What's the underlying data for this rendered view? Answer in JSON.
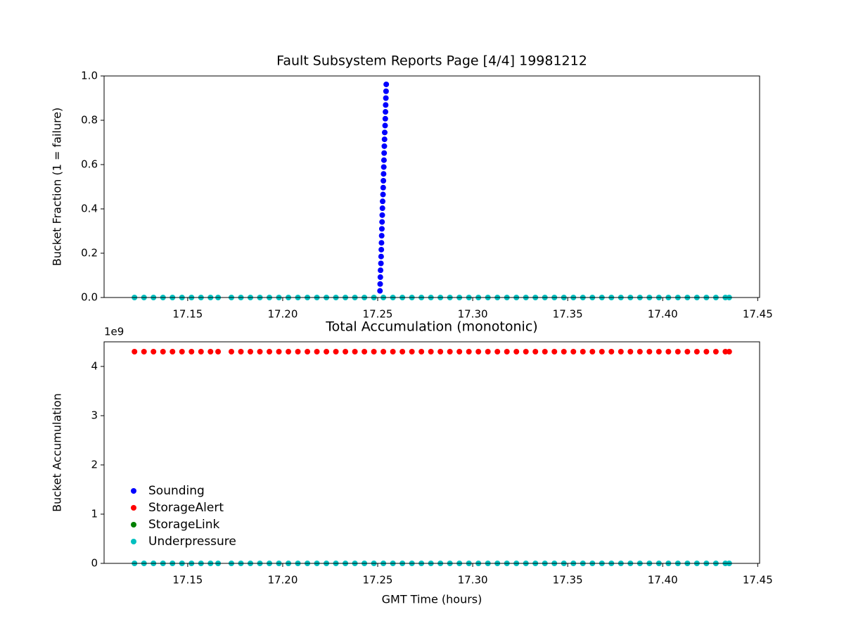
{
  "chart_data": [
    {
      "type": "scatter",
      "title": "Fault Subsystem Reports Page [4/4] 19981212",
      "y_label": "Bucket Fraction (1 = failure)",
      "xlim": [
        17.106,
        17.451
      ],
      "ylim": [
        0,
        1
      ],
      "xticks": [
        17.15,
        {
          "value": 17.2,
          "label": "17.20"
        },
        17.25,
        {
          "value": 17.3,
          "label": "17.30"
        },
        17.35,
        {
          "value": 17.4,
          "label": "17.40"
        },
        17.45
      ],
      "yticks": [
        {
          "value": 0,
          "label": "0.0"
        },
        0.2,
        0.4,
        0.6,
        0.8,
        {
          "value": 1,
          "label": "1.0"
        }
      ],
      "legend": false,
      "series": [
        {
          "name": "Sounding",
          "color": "#0000ff",
          "x": [
            17.2512,
            17.2513,
            17.2514,
            17.2515,
            17.2517,
            17.2518,
            17.2519,
            17.252,
            17.2521,
            17.2522,
            17.2523,
            17.2524,
            17.2525,
            17.2526,
            17.2528,
            17.2529,
            17.253,
            17.2531,
            17.2532,
            17.2533,
            17.2534,
            17.2535,
            17.2536,
            17.2537,
            17.2539,
            17.254,
            17.2541,
            17.2542,
            17.2543,
            17.2544,
            17.2545
          ],
          "values": [
            0.03,
            0.061,
            0.092,
            0.123,
            0.154,
            0.185,
            0.216,
            0.247,
            0.279,
            0.31,
            0.341,
            0.372,
            0.403,
            0.434,
            0.465,
            0.496,
            0.527,
            0.558,
            0.589,
            0.62,
            0.652,
            0.683,
            0.714,
            0.745,
            0.776,
            0.807,
            0.838,
            0.869,
            0.9,
            0.931,
            0.962
          ]
        },
        {
          "name": "Underpressure",
          "color": "#00bfbf",
          "x": [
            17.122,
            17.127,
            17.132,
            17.137,
            17.142,
            17.147,
            17.152,
            17.157,
            17.162,
            17.166,
            17.173,
            17.178,
            17.183,
            17.188,
            17.193,
            17.198,
            17.203,
            17.208,
            17.213,
            17.218,
            17.223,
            17.228,
            17.233,
            17.238,
            17.243,
            17.248,
            17.253,
            17.258,
            17.263,
            17.268,
            17.273,
            17.278,
            17.283,
            17.288,
            17.293,
            17.298,
            17.303,
            17.308,
            17.313,
            17.318,
            17.323,
            17.328,
            17.333,
            17.338,
            17.343,
            17.348,
            17.353,
            17.358,
            17.363,
            17.368,
            17.373,
            17.378,
            17.383,
            17.388,
            17.393,
            17.398,
            17.403,
            17.408,
            17.413,
            17.418,
            17.423,
            17.428,
            17.433,
            17.435
          ],
          "values": [
            0,
            0,
            0,
            0,
            0,
            0,
            0,
            0,
            0,
            0,
            0,
            0,
            0,
            0,
            0,
            0,
            0,
            0,
            0,
            0,
            0,
            0,
            0,
            0,
            0,
            0,
            0,
            0,
            0,
            0,
            0,
            0,
            0,
            0,
            0,
            0,
            0,
            0,
            0,
            0,
            0,
            0,
            0,
            0,
            0,
            0,
            0,
            0,
            0,
            0,
            0,
            0,
            0,
            0,
            0,
            0,
            0,
            0,
            0,
            0,
            0,
            0,
            0,
            0
          ]
        }
      ]
    },
    {
      "type": "scatter",
      "title": "Total Accumulation (monotonic)",
      "x_label": "GMT Time (hours)",
      "y_label": "Bucket Accumulation",
      "y_offset_label": "1e9",
      "xlim": [
        17.106,
        17.451
      ],
      "ylim": [
        0,
        4500000000
      ],
      "xticks": [
        17.15,
        {
          "value": 17.2,
          "label": "17.20"
        },
        17.25,
        {
          "value": 17.3,
          "label": "17.30"
        },
        17.35,
        {
          "value": 17.4,
          "label": "17.40"
        },
        17.45
      ],
      "yticks": [
        0,
        {
          "value": 1000000000,
          "label": "1"
        },
        {
          "value": 2000000000,
          "label": "2"
        },
        {
          "value": 3000000000,
          "label": "3"
        },
        {
          "value": 4000000000,
          "label": "4"
        }
      ],
      "legend": "lower left",
      "series": [
        {
          "name": "Sounding",
          "color": "#0000ff",
          "x": [],
          "values": []
        },
        {
          "name": "StorageAlert",
          "color": "#ff0000",
          "x": [
            17.122,
            17.127,
            17.132,
            17.137,
            17.142,
            17.147,
            17.152,
            17.157,
            17.162,
            17.166,
            17.173,
            17.178,
            17.183,
            17.188,
            17.193,
            17.198,
            17.203,
            17.208,
            17.213,
            17.218,
            17.223,
            17.228,
            17.233,
            17.238,
            17.243,
            17.248,
            17.253,
            17.258,
            17.263,
            17.268,
            17.273,
            17.278,
            17.283,
            17.288,
            17.293,
            17.298,
            17.303,
            17.308,
            17.313,
            17.318,
            17.323,
            17.328,
            17.333,
            17.338,
            17.343,
            17.348,
            17.353,
            17.358,
            17.363,
            17.368,
            17.373,
            17.378,
            17.383,
            17.388,
            17.393,
            17.398,
            17.403,
            17.408,
            17.413,
            17.418,
            17.423,
            17.428,
            17.433,
            17.435
          ],
          "values": [
            4300000000,
            4300000000,
            4300000000,
            4300000000,
            4300000000,
            4300000000,
            4300000000,
            4300000000,
            4300000000,
            4300000000,
            4300000000,
            4300000000,
            4300000000,
            4300000000,
            4300000000,
            4300000000,
            4300000000,
            4300000000,
            4300000000,
            4300000000,
            4300000000,
            4300000000,
            4300000000,
            4300000000,
            4300000000,
            4300000000,
            4300000000,
            4300000000,
            4300000000,
            4300000000,
            4300000000,
            4300000000,
            4300000000,
            4300000000,
            4300000000,
            4300000000,
            4300000000,
            4300000000,
            4300000000,
            4300000000,
            4300000000,
            4300000000,
            4300000000,
            4300000000,
            4300000000,
            4300000000,
            4300000000,
            4300000000,
            4300000000,
            4300000000,
            4300000000,
            4300000000,
            4300000000,
            4300000000,
            4300000000,
            4300000000,
            4300000000,
            4300000000,
            4300000000,
            4300000000,
            4300000000,
            4300000000,
            4300000000,
            4300000000
          ]
        },
        {
          "name": "StorageLink",
          "color": "#008000",
          "x": [],
          "values": []
        },
        {
          "name": "Underpressure",
          "color": "#00bfbf",
          "x": [
            17.122,
            17.127,
            17.132,
            17.137,
            17.142,
            17.147,
            17.152,
            17.157,
            17.162,
            17.166,
            17.173,
            17.178,
            17.183,
            17.188,
            17.193,
            17.198,
            17.203,
            17.208,
            17.213,
            17.218,
            17.223,
            17.228,
            17.233,
            17.238,
            17.243,
            17.248,
            17.253,
            17.258,
            17.263,
            17.268,
            17.273,
            17.278,
            17.283,
            17.288,
            17.293,
            17.298,
            17.303,
            17.308,
            17.313,
            17.318,
            17.323,
            17.328,
            17.333,
            17.338,
            17.343,
            17.348,
            17.353,
            17.358,
            17.363,
            17.368,
            17.373,
            17.378,
            17.383,
            17.388,
            17.393,
            17.398,
            17.403,
            17.408,
            17.413,
            17.418,
            17.423,
            17.428,
            17.433,
            17.435
          ],
          "values": [
            0,
            0,
            0,
            0,
            0,
            0,
            0,
            0,
            0,
            0,
            0,
            0,
            0,
            0,
            0,
            0,
            0,
            0,
            0,
            0,
            0,
            0,
            0,
            0,
            0,
            0,
            0,
            0,
            0,
            0,
            0,
            0,
            0,
            0,
            0,
            0,
            0,
            0,
            0,
            0,
            0,
            0,
            0,
            0,
            0,
            0,
            0,
            0,
            0,
            0,
            0,
            0,
            0,
            0,
            0,
            0,
            0,
            0,
            0,
            0,
            0,
            0,
            0,
            0
          ]
        }
      ]
    }
  ]
}
